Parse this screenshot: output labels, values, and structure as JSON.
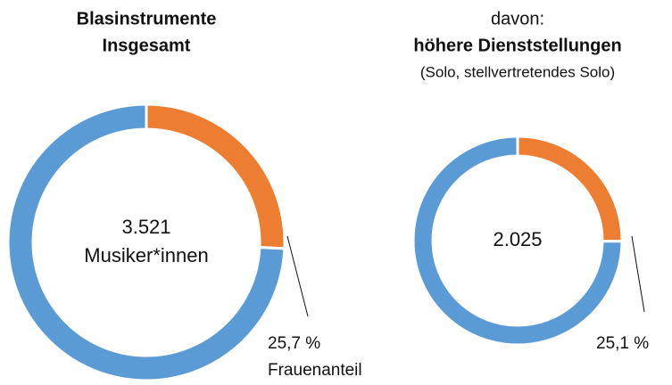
{
  "chart_data": [
    {
      "type": "donut",
      "title_lines": [
        "Blasinstrumente",
        "Insgesamt"
      ],
      "center_lines": [
        "3.521",
        "Musiker*innen"
      ],
      "values": [
        25.7,
        74.3
      ],
      "colors": [
        "#ed7d31",
        "#5b9bd5"
      ],
      "value_labels": [
        "25,7 %",
        null
      ],
      "annotation": "Frauenanteil"
    },
    {
      "type": "donut",
      "subtitle": "davon:",
      "title_lines": [
        "höhere Dienststellungen"
      ],
      "note": "(Solo, stellvertretendes Solo)",
      "center_lines": [
        "2.025"
      ],
      "values": [
        25.1,
        74.9
      ],
      "colors": [
        "#ed7d31",
        "#5b9bd5"
      ],
      "value_labels": [
        "25,1 %",
        null
      ]
    }
  ]
}
